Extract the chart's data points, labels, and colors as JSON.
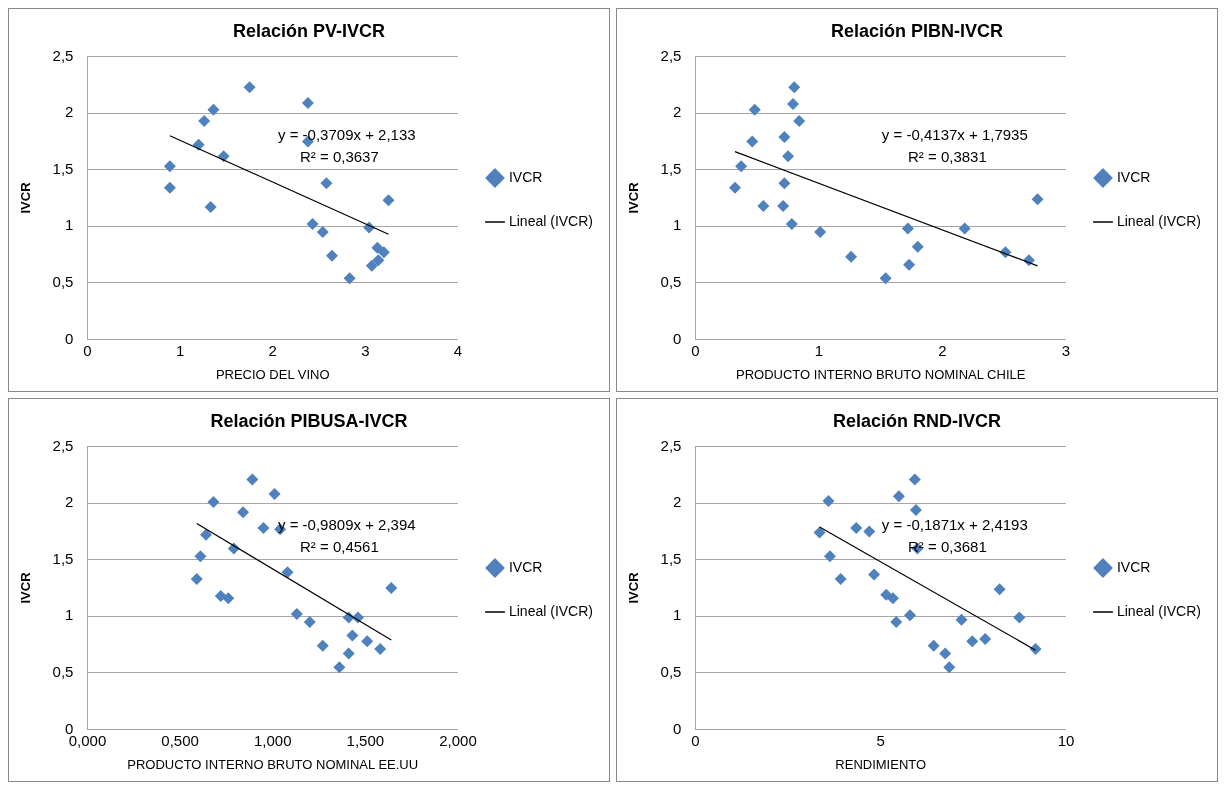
{
  "chart_data": [
    {
      "type": "scatter",
      "title": "Relación PV-IVCR",
      "xlabel": "PRECIO DEL VINO",
      "ylabel": "IVCR",
      "xlim": [
        0,
        4
      ],
      "xticks": [
        0,
        1,
        2,
        3,
        4
      ],
      "ylim": [
        0,
        2.5
      ],
      "yticks": [
        0,
        {
          "value": 0.5,
          "label": "0,5"
        },
        1,
        {
          "value": 1.5,
          "label": "1,5"
        },
        2,
        {
          "value": 2.5,
          "label": "2,5"
        }
      ],
      "grid": "y",
      "legend": "right",
      "marker": "diamond",
      "annotations": [
        "y = -0,3709x + 2,133",
        "R² = 0,3637"
      ],
      "series": [
        {
          "name": "IVCR",
          "color": "#4f81bd",
          "x": [
            0.89,
            0.89,
            1.2,
            1.26,
            1.36,
            1.33,
            1.47,
            1.75,
            2.38,
            2.38,
            2.58,
            2.43,
            2.54,
            2.64,
            2.83,
            3.04,
            3.25,
            3.07,
            3.13,
            3.2,
            3.14
          ],
          "values": [
            1.53,
            1.34,
            1.72,
            1.93,
            2.03,
            1.17,
            1.62,
            2.23,
            2.09,
            1.75,
            1.38,
            1.02,
            0.95,
            0.74,
            0.54,
            0.99,
            1.23,
            0.65,
            0.81,
            0.77,
            0.7
          ]
        },
        {
          "name": "Lineal (IVCR)",
          "type": "line",
          "color": "#000000",
          "marker": "none",
          "line_style": "solid",
          "x": [
            0.89,
            3.25
          ],
          "values": [
            1.8,
            0.93
          ]
        }
      ]
    },
    {
      "type": "scatter",
      "title": "Relación PIBN-IVCR",
      "xlabel": "PRODUCTO INTERNO BRUTO NOMINAL CHILE",
      "ylabel": "IVCR",
      "xlim": [
        0,
        3
      ],
      "xticks": [
        0,
        1,
        2,
        3
      ],
      "ylim": [
        0,
        2.5
      ],
      "yticks": [
        0,
        {
          "value": 0.5,
          "label": "0,5"
        },
        1,
        {
          "value": 1.5,
          "label": "1,5"
        },
        2,
        {
          "value": 2.5,
          "label": "2,5"
        }
      ],
      "grid": "y",
      "legend": "right",
      "marker": "diamond",
      "annotations": [
        "y = -0,4137x + 1,7935",
        "R² = 0,3831"
      ],
      "series": [
        {
          "name": "IVCR",
          "color": "#4f81bd",
          "x": [
            0.32,
            0.37,
            0.46,
            0.48,
            0.55,
            0.71,
            0.72,
            0.72,
            0.75,
            0.8,
            0.79,
            0.84,
            0.78,
            1.01,
            1.26,
            1.54,
            1.72,
            1.73,
            1.8,
            2.18,
            2.51,
            2.7,
            2.77
          ],
          "values": [
            1.34,
            1.53,
            1.75,
            2.03,
            1.18,
            1.18,
            1.38,
            1.79,
            1.62,
            2.23,
            2.08,
            1.93,
            1.02,
            0.95,
            0.73,
            0.54,
            0.98,
            0.66,
            0.82,
            0.98,
            0.77,
            0.7,
            1.24
          ]
        },
        {
          "name": "Lineal (IVCR)",
          "type": "line",
          "color": "#000000",
          "marker": "none",
          "line_style": "solid",
          "x": [
            0.32,
            2.77
          ],
          "values": [
            1.66,
            0.65
          ]
        }
      ]
    },
    {
      "type": "scatter",
      "title": "Relación PIBUSA-IVCR",
      "xlabel": "PRODUCTO INTERNO BRUTO NOMINAL EE.UU",
      "ylabel": "IVCR",
      "xlim": [
        0,
        2
      ],
      "xticks": [
        {
          "value": 0,
          "label": "0,000"
        },
        {
          "value": 0.5,
          "label": "0,500"
        },
        {
          "value": 1,
          "label": "1,000"
        },
        {
          "value": 1.5,
          "label": "1,500"
        },
        {
          "value": 2,
          "label": "2,000"
        }
      ],
      "ylim": [
        0,
        2.5
      ],
      "yticks": [
        0,
        {
          "value": 0.5,
          "label": "0,5"
        },
        1,
        {
          "value": 1.5,
          "label": "1,5"
        },
        2,
        {
          "value": 2.5,
          "label": "2,5"
        }
      ],
      "grid": "y",
      "legend": "right",
      "marker": "diamond",
      "annotations": [
        "y = -0,9809x + 2,394",
        "R² = 0,4561"
      ],
      "series": [
        {
          "name": "IVCR",
          "color": "#4f81bd",
          "x": [
            0.59,
            0.61,
            0.64,
            0.68,
            0.72,
            0.76,
            0.79,
            0.84,
            0.89,
            0.95,
            1.01,
            1.04,
            1.08,
            1.13,
            1.2,
            1.27,
            1.36,
            1.41,
            1.43,
            1.41,
            1.46,
            1.51,
            1.58,
            1.64
          ],
          "values": [
            1.33,
            1.53,
            1.72,
            2.01,
            1.18,
            1.16,
            1.6,
            1.92,
            2.21,
            1.78,
            2.08,
            1.77,
            1.39,
            1.02,
            0.95,
            0.74,
            0.55,
            0.67,
            0.83,
            0.99,
            0.99,
            0.78,
            0.71,
            1.25
          ]
        },
        {
          "name": "Lineal (IVCR)",
          "type": "line",
          "color": "#000000",
          "marker": "none",
          "line_style": "solid",
          "x": [
            0.59,
            1.64
          ],
          "values": [
            1.82,
            0.79
          ]
        }
      ]
    },
    {
      "type": "scatter",
      "title": "Relación RND-IVCR",
      "xlabel": "RENDIMIENTO",
      "ylabel": "IVCR",
      "xlim": [
        0,
        10
      ],
      "xticks": [
        0,
        5,
        10
      ],
      "ylim": [
        0,
        2.5
      ],
      "yticks": [
        0,
        {
          "value": 0.5,
          "label": "0,5"
        },
        1,
        {
          "value": 1.5,
          "label": "1,5"
        },
        2,
        {
          "value": 2.5,
          "label": "2,5"
        }
      ],
      "grid": "y",
      "legend": "right",
      "marker": "diamond",
      "annotations": [
        "y = -0,1871x + 2,4193",
        "R² = 0,3681"
      ],
      "series": [
        {
          "name": "IVCR",
          "color": "#4f81bd",
          "x": [
            3.35,
            3.59,
            3.63,
            3.92,
            4.34,
            4.69,
            4.82,
            5.15,
            5.33,
            5.42,
            5.49,
            5.79,
            5.92,
            5.95,
            5.99,
            6.43,
            6.74,
            6.85,
            7.18,
            7.47,
            7.82,
            8.21,
            8.74,
            9.18
          ],
          "values": [
            1.74,
            2.02,
            1.53,
            1.33,
            1.78,
            1.75,
            1.37,
            1.19,
            1.16,
            0.95,
            2.06,
            1.01,
            2.21,
            1.94,
            1.6,
            0.74,
            0.67,
            0.55,
            0.97,
            0.78,
            0.8,
            1.24,
            0.99,
            0.71
          ]
        },
        {
          "name": "Lineal (IVCR)",
          "type": "line",
          "color": "#000000",
          "marker": "none",
          "line_style": "solid",
          "x": [
            3.35,
            9.18
          ],
          "values": [
            1.79,
            0.7
          ]
        }
      ]
    }
  ]
}
